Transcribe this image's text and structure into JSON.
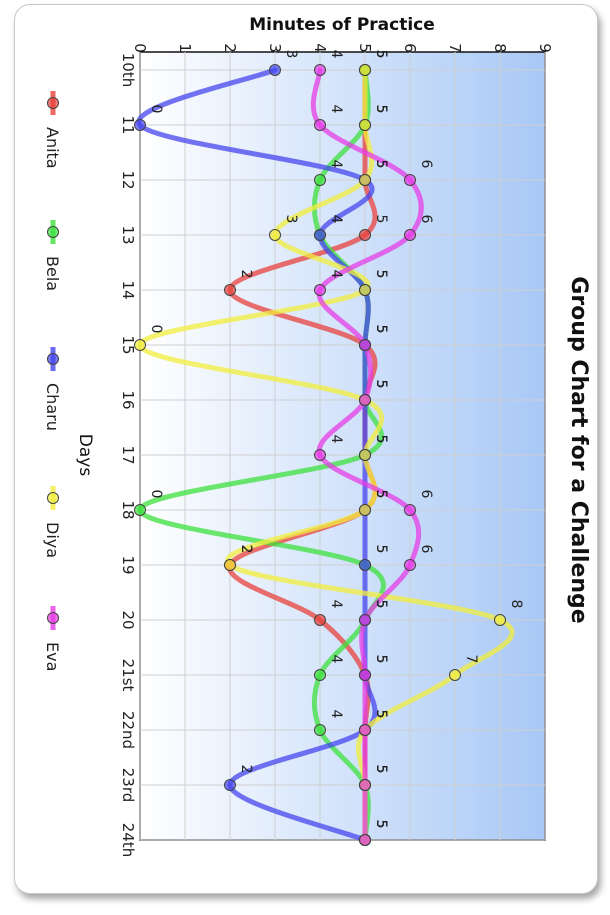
{
  "chart_data": {
    "type": "line",
    "title": "Group Chart for a Challenge",
    "xlabel": "Days",
    "ylabel": "Minutes of Practice",
    "categories": [
      "10th",
      "11",
      "12",
      "13",
      "14",
      "15",
      "16",
      "17",
      "18",
      "19",
      "20",
      "21st",
      "22nd",
      "23rd",
      "24th"
    ],
    "ylim": [
      0,
      9
    ],
    "yticks": [
      "0",
      "1",
      "2",
      "3",
      "4",
      "5",
      "6",
      "7",
      "8",
      "9"
    ],
    "grid": true,
    "legend_position": "bottom",
    "series": [
      {
        "name": "Anita",
        "color": "#e8423c",
        "values": [
          5,
          5,
          5,
          5,
          2,
          5,
          5,
          5,
          5,
          2,
          4,
          5,
          5,
          5,
          5
        ]
      },
      {
        "name": "Bela",
        "color": "#3ce03c",
        "values": [
          5,
          5,
          4,
          4,
          5,
          5,
          5,
          5,
          0,
          5,
          5,
          4,
          4,
          5,
          5
        ]
      },
      {
        "name": "Charu",
        "color": "#4646ee",
        "values": [
          3,
          0,
          5,
          4,
          5,
          5,
          5,
          5,
          5,
          5,
          5,
          5,
          5,
          2,
          5
        ]
      },
      {
        "name": "Diya",
        "color": "#f2ee3c",
        "values": [
          5,
          5,
          5,
          3,
          5,
          0,
          5,
          5,
          5,
          2,
          8,
          7,
          5,
          5,
          5
        ]
      },
      {
        "name": "Eva",
        "color": "#e63ce6",
        "values": [
          4,
          4,
          6,
          6,
          4,
          5,
          5,
          4,
          6,
          6,
          5,
          5,
          5,
          5,
          5
        ]
      }
    ]
  }
}
